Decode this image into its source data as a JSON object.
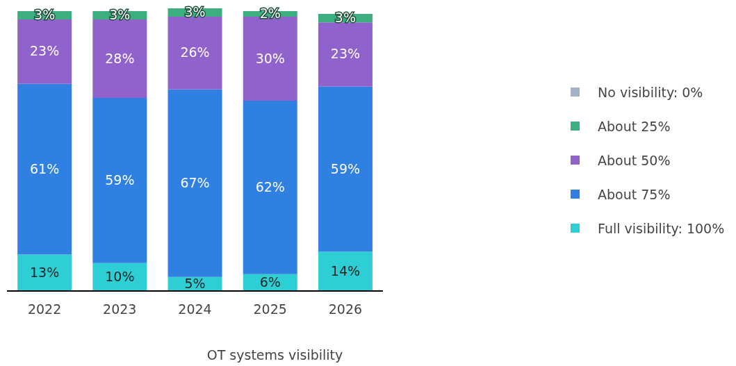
{
  "chart_data": {
    "type": "bar",
    "stacked": true,
    "xlabel": "OT systems visibility",
    "legend": "right",
    "categories": [
      "2022",
      "2023",
      "2024",
      "2025",
      "2026"
    ],
    "series": [
      {
        "name": "Full visibility: 100%",
        "color": "#2ecfd4",
        "values": [
          13,
          10,
          5,
          6,
          14
        ],
        "value_labels": [
          "13%",
          "10%",
          "5%",
          "6%",
          "14%"
        ]
      },
      {
        "name": "About 75%",
        "color": "#2f80e0",
        "values": [
          61,
          59,
          67,
          62,
          59
        ],
        "value_labels": [
          "61%",
          "59%",
          "67%",
          "62%",
          "59%"
        ]
      },
      {
        "name": "About 50%",
        "color": "#9063cc",
        "values": [
          23,
          28,
          26,
          30,
          23
        ],
        "value_labels": [
          "23%",
          "28%",
          "26%",
          "30%",
          "23%"
        ]
      },
      {
        "name": "About 25%",
        "color": "#3daf7f",
        "values": [
          3,
          3,
          3,
          2,
          3
        ],
        "value_labels": [
          "3%",
          "3%",
          "3%",
          "2%",
          "3%"
        ]
      },
      {
        "name": "No visibility: 0%",
        "color": "#a3b1c6",
        "values": [
          0,
          0,
          0,
          0,
          0
        ],
        "value_labels": [
          null,
          null,
          null,
          null,
          null
        ]
      }
    ]
  }
}
